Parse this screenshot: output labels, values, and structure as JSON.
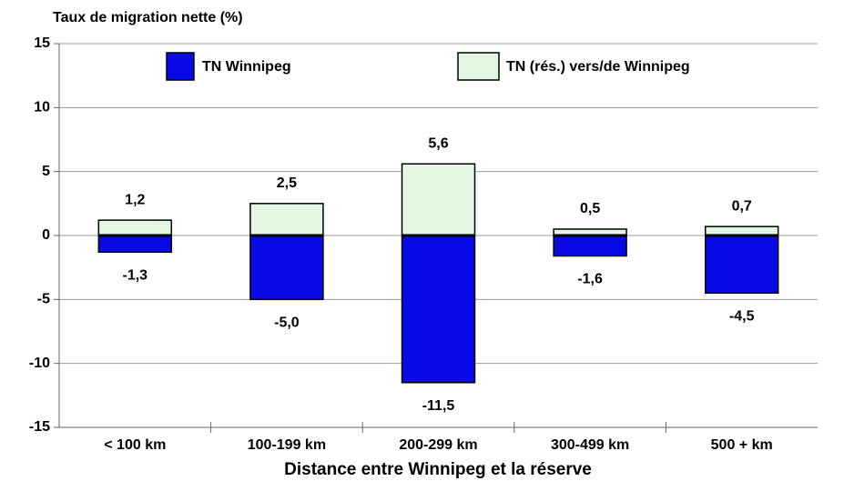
{
  "chart_data": {
    "type": "bar",
    "y_axis_label": "Taux de migration nette (%)",
    "x_axis_label": "Distance entre Winnipeg et la réserve",
    "categories": [
      "< 100 km",
      "100-199 km",
      "200-299 km",
      "300-499 km",
      "500 + km"
    ],
    "series": [
      {
        "name": "TN Winnipeg",
        "color": "#0a0ae6",
        "values": [
          -1.3,
          -5.0,
          -11.5,
          -1.6,
          -4.5
        ],
        "value_labels": [
          "-1,3",
          "-5,0",
          "-11,5",
          "-1,6",
          "-4,5"
        ]
      },
      {
        "name": "TN (rés.) vers/de Winnipeg",
        "color": "#e2f8e2",
        "values": [
          1.2,
          2.5,
          5.6,
          0.5,
          0.7
        ],
        "value_labels": [
          "1,2",
          "2,5",
          "5,6",
          "0,5",
          "0,7"
        ]
      }
    ],
    "ylim": [
      -15,
      15
    ],
    "yticks": [
      -15,
      -10,
      -5,
      0,
      5,
      10,
      15
    ],
    "grid": true,
    "legend": "top"
  }
}
